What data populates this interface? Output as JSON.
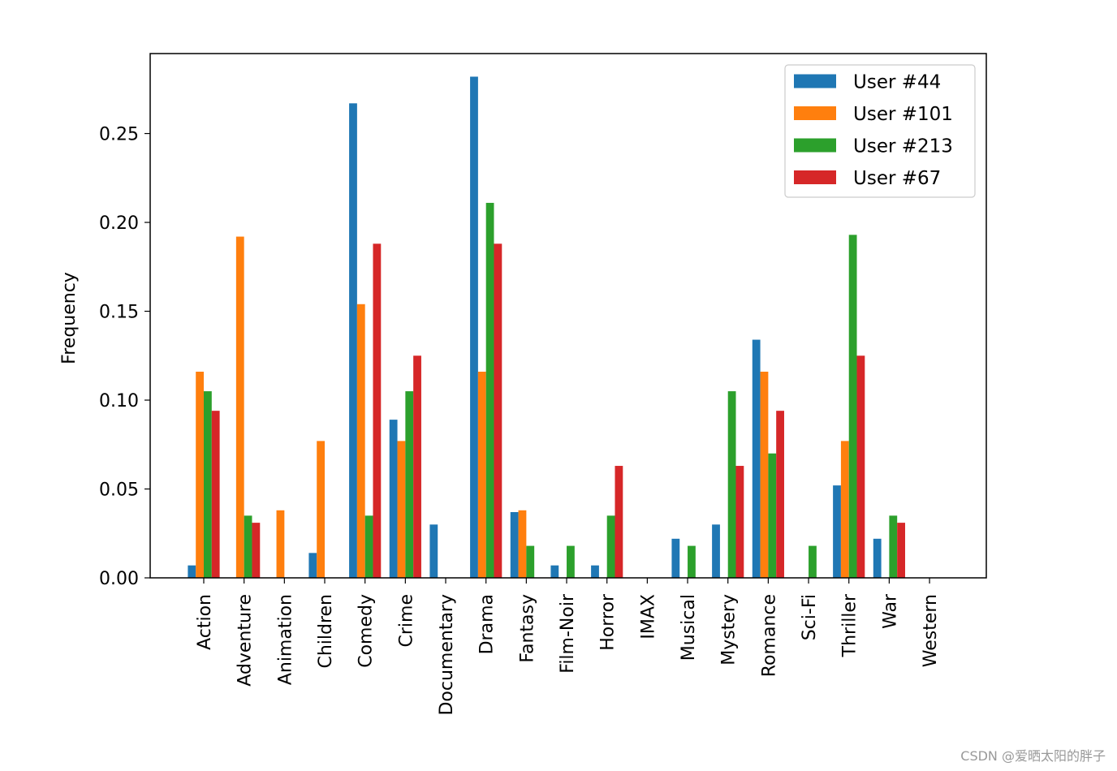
{
  "chart_data": {
    "type": "bar",
    "title": "",
    "xlabel": "",
    "ylabel": "Frequency",
    "ylim": [
      0,
      0.295
    ],
    "yticks": [
      "0.00",
      "0.05",
      "0.10",
      "0.15",
      "0.20",
      "0.25"
    ],
    "grid": false,
    "legend_position": "top-right",
    "categories": [
      "Action",
      "Adventure",
      "Animation",
      "Children",
      "Comedy",
      "Crime",
      "Documentary",
      "Drama",
      "Fantasy",
      "Film-Noir",
      "Horror",
      "IMAX",
      "Musical",
      "Mystery",
      "Romance",
      "Sci-Fi",
      "Thriller",
      "War",
      "Western"
    ],
    "series": [
      {
        "name": "User #44",
        "color": "#1f77b4",
        "values": [
          0.007,
          0,
          0,
          0.014,
          0.267,
          0.089,
          0.03,
          0.282,
          0.037,
          0.007,
          0.007,
          0,
          0.022,
          0.03,
          0.134,
          0,
          0.052,
          0.022,
          0
        ]
      },
      {
        "name": "User #101",
        "color": "#ff7f0e",
        "values": [
          0.116,
          0.192,
          0.038,
          0.077,
          0.154,
          0.077,
          0,
          0.116,
          0.038,
          0,
          0,
          0,
          0,
          0,
          0.116,
          0,
          0.077,
          0,
          0
        ]
      },
      {
        "name": "User #213",
        "color": "#2ca02c",
        "values": [
          0.105,
          0.035,
          0,
          0,
          0.035,
          0.105,
          0,
          0.211,
          0.018,
          0.018,
          0.035,
          0,
          0.018,
          0.105,
          0.07,
          0.018,
          0.193,
          0.035,
          0
        ]
      },
      {
        "name": "User #67",
        "color": "#d62728",
        "values": [
          0.094,
          0.031,
          0,
          0,
          0.188,
          0.125,
          0,
          0.188,
          0,
          0,
          0.063,
          0,
          0,
          0.063,
          0.094,
          0,
          0.125,
          0.031,
          0
        ]
      }
    ]
  },
  "watermark": "CSDN @爱晒太阳的胖子"
}
